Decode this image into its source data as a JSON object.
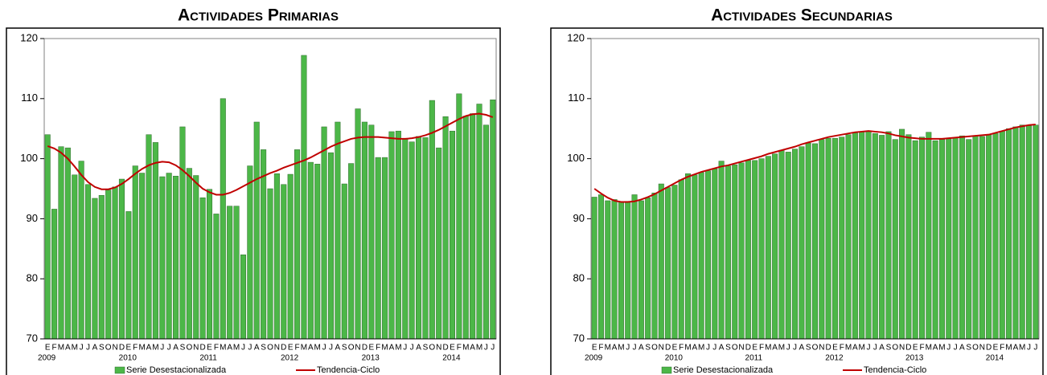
{
  "chart_data": [
    {
      "type": "bar",
      "title": "Actividades Primarias",
      "categories": [
        "E",
        "F",
        "M",
        "A",
        "M",
        "J",
        "J",
        "A",
        "S",
        "O",
        "N",
        "D",
        "E",
        "F",
        "M",
        "A",
        "M",
        "J",
        "J",
        "A",
        "S",
        "O",
        "N",
        "D",
        "E",
        "F",
        "M",
        "A",
        "M",
        "J",
        "J",
        "A",
        "S",
        "O",
        "N",
        "D",
        "E",
        "F",
        "M",
        "A",
        "M",
        "J",
        "J",
        "A",
        "S",
        "O",
        "N",
        "D",
        "E",
        "F",
        "M",
        "A",
        "M",
        "J",
        "J",
        "A",
        "S",
        "O",
        "N",
        "D",
        "E",
        "F",
        "M",
        "A",
        "M",
        "J",
        "J"
      ],
      "years": [
        "2009",
        "2010",
        "2011",
        "2012",
        "2013",
        "2014"
      ],
      "ylim": [
        70,
        120
      ],
      "yticks": [
        70,
        80,
        90,
        100,
        110,
        120
      ],
      "grid": false,
      "legend": "bottom",
      "series": [
        {
          "name": "Serie Desestacionalizada",
          "type": "bar",
          "color": "#4cb748",
          "values": [
            104.0,
            91.6,
            102.0,
            101.8,
            97.3,
            99.6,
            95.7,
            93.4,
            93.9,
            94.8,
            95.3,
            96.6,
            91.2,
            98.8,
            97.6,
            104.0,
            102.7,
            97.0,
            97.6,
            97.1,
            105.3,
            98.4,
            97.2,
            93.5,
            94.9,
            90.8,
            110.0,
            92.1,
            92.1,
            84.0,
            98.8,
            106.1,
            101.5,
            95.0,
            97.5,
            95.7,
            97.4,
            101.5,
            117.2,
            99.4,
            99.1,
            105.3,
            101.0,
            106.1,
            95.8,
            99.2,
            108.3,
            106.1,
            105.6,
            100.2,
            100.2,
            104.5,
            104.6,
            103.3,
            102.8,
            103.7,
            103.5,
            109.7,
            101.8,
            107.0,
            104.6,
            110.8,
            107.1,
            107.5,
            109.1,
            105.6,
            109.8
          ]
        },
        {
          "name": "Tendencia-Ciclo",
          "type": "line",
          "color": "#c00000",
          "values": [
            102.1,
            101.7,
            101.0,
            100.0,
            98.7,
            97.3,
            96.1,
            95.3,
            94.9,
            94.9,
            95.2,
            95.8,
            96.6,
            97.5,
            98.3,
            98.9,
            99.3,
            99.5,
            99.4,
            98.9,
            98.1,
            97.1,
            96.0,
            95.0,
            94.4,
            94.0,
            94.0,
            94.3,
            94.8,
            95.4,
            96.0,
            96.6,
            97.1,
            97.6,
            98.0,
            98.5,
            98.9,
            99.3,
            99.7,
            100.2,
            100.8,
            101.4,
            102.0,
            102.5,
            102.9,
            103.3,
            103.5,
            103.6,
            103.6,
            103.6,
            103.5,
            103.4,
            103.3,
            103.3,
            103.4,
            103.6,
            103.9,
            104.3,
            104.8,
            105.4,
            106.0,
            106.6,
            107.1,
            107.4,
            107.5,
            107.3,
            106.9
          ]
        }
      ]
    },
    {
      "type": "bar",
      "title": "Actividades Secundarias",
      "categories": [
        "E",
        "F",
        "M",
        "A",
        "M",
        "J",
        "J",
        "A",
        "S",
        "O",
        "N",
        "D",
        "E",
        "F",
        "M",
        "A",
        "M",
        "J",
        "J",
        "A",
        "S",
        "O",
        "N",
        "D",
        "E",
        "F",
        "M",
        "A",
        "M",
        "J",
        "J",
        "A",
        "S",
        "O",
        "N",
        "D",
        "E",
        "F",
        "M",
        "A",
        "M",
        "J",
        "J",
        "A",
        "S",
        "O",
        "N",
        "D",
        "E",
        "F",
        "M",
        "A",
        "M",
        "J",
        "J",
        "A",
        "S",
        "O",
        "N",
        "D",
        "E",
        "F",
        "M",
        "A",
        "M",
        "J",
        "J"
      ],
      "years": [
        "2009",
        "2010",
        "2011",
        "2012",
        "2013",
        "2014"
      ],
      "ylim": [
        70,
        120
      ],
      "yticks": [
        70,
        80,
        90,
        100,
        110,
        120
      ],
      "grid": false,
      "legend": "bottom",
      "series": [
        {
          "name": "Serie Desestacionalizada",
          "type": "bar",
          "color": "#4cb748",
          "values": [
            93.6,
            94.0,
            93.0,
            93.2,
            92.8,
            92.9,
            94.0,
            93.0,
            93.5,
            94.3,
            95.8,
            95.2,
            95.6,
            96.5,
            97.5,
            97.3,
            97.7,
            98.0,
            98.3,
            99.6,
            98.8,
            99.0,
            99.3,
            99.7,
            99.7,
            100.0,
            100.4,
            100.8,
            101.4,
            101.1,
            101.6,
            102.0,
            102.6,
            102.5,
            103.2,
            103.4,
            103.4,
            103.6,
            104.0,
            104.3,
            104.5,
            104.6,
            104.2,
            103.9,
            104.5,
            103.2,
            104.9,
            104.0,
            103.0,
            103.6,
            104.4,
            103.0,
            103.2,
            103.3,
            103.5,
            103.8,
            103.2,
            103.8,
            103.7,
            104.0,
            104.2,
            104.6,
            105.0,
            105.3,
            105.6,
            105.5,
            105.6
          ]
        },
        {
          "name": "Tendencia-Ciclo",
          "type": "line",
          "color": "#c00000",
          "values": [
            95.0,
            94.2,
            93.5,
            93.0,
            92.8,
            92.8,
            92.9,
            93.2,
            93.6,
            94.1,
            94.7,
            95.3,
            95.9,
            96.5,
            97.0,
            97.4,
            97.8,
            98.1,
            98.4,
            98.7,
            98.9,
            99.2,
            99.5,
            99.8,
            100.1,
            100.4,
            100.8,
            101.1,
            101.4,
            101.7,
            102.0,
            102.4,
            102.7,
            103.0,
            103.3,
            103.6,
            103.8,
            104.0,
            104.2,
            104.4,
            104.5,
            104.6,
            104.5,
            104.4,
            104.2,
            103.9,
            103.7,
            103.5,
            103.4,
            103.3,
            103.3,
            103.3,
            103.3,
            103.4,
            103.5,
            103.6,
            103.7,
            103.8,
            103.9,
            104.0,
            104.3,
            104.6,
            104.9,
            105.2,
            105.4,
            105.6,
            105.7
          ]
        }
      ]
    }
  ]
}
